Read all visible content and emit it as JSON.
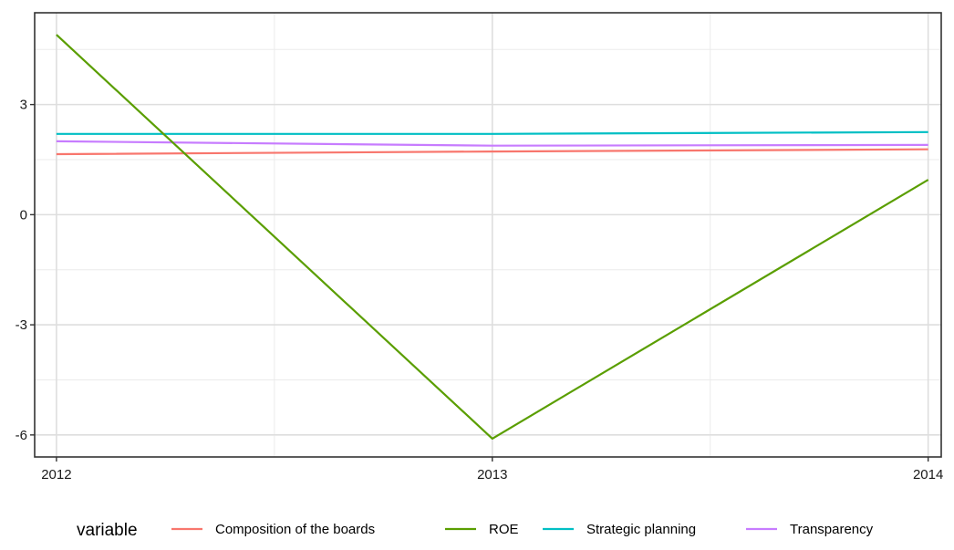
{
  "chart_data": {
    "type": "line",
    "x": [
      2012,
      2013,
      2014
    ],
    "x_tick_labels": [
      "2012",
      "2013",
      "2014"
    ],
    "y_tick_values": [
      3,
      0,
      -3,
      -6
    ],
    "y_tick_labels": [
      "3",
      "0",
      "-3",
      "-6"
    ],
    "xlim": [
      2011.95,
      2014.03
    ],
    "ylim": [
      -6.6,
      5.5
    ],
    "grid": true,
    "legend": {
      "title": "variable",
      "position": "bottom"
    },
    "series": [
      {
        "name": "Composition of the boards",
        "color": "#F8766D",
        "values": [
          1.65,
          1.72,
          1.78
        ]
      },
      {
        "name": "ROE",
        "color": "#5A9E00",
        "values": [
          4.9,
          -6.1,
          0.95
        ]
      },
      {
        "name": "Strategic planning",
        "color": "#00BFC4",
        "values": [
          2.2,
          2.2,
          2.25
        ]
      },
      {
        "name": "Transparency",
        "color": "#C77CFF",
        "values": [
          2.0,
          1.88,
          1.9
        ]
      }
    ]
  }
}
